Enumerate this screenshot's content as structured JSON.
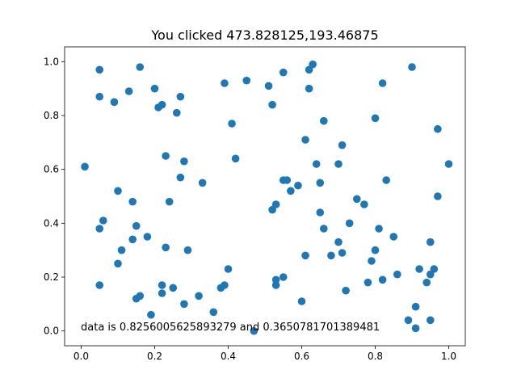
{
  "chart_data": {
    "type": "scatter",
    "title": "You clicked 473.828125,193.46875",
    "xlabel": "",
    "ylabel": "",
    "xlim": [
      -0.045,
      1.045
    ],
    "ylim": [
      -0.055,
      1.055
    ],
    "xticks": [
      0.0,
      0.2,
      0.4,
      0.6,
      0.8,
      1.0
    ],
    "yticks": [
      0.0,
      0.2,
      0.4,
      0.6,
      0.8,
      1.0
    ],
    "xtick_labels": [
      "0.0",
      "0.2",
      "0.4",
      "0.6",
      "0.8",
      "1.0"
    ],
    "ytick_labels": [
      "0.0",
      "0.2",
      "0.4",
      "0.6",
      "0.8",
      "1.0"
    ],
    "grid": false,
    "annotation": "data is 0.8256005625893279 and 0.3650781701389481",
    "marker_color": "#1f77b4",
    "points": [
      [
        0.01,
        0.61
      ],
      [
        0.05,
        0.97
      ],
      [
        0.05,
        0.87
      ],
      [
        0.05,
        0.38
      ],
      [
        0.06,
        0.41
      ],
      [
        0.05,
        0.17
      ],
      [
        0.09,
        0.85
      ],
      [
        0.1,
        0.52
      ],
      [
        0.1,
        0.25
      ],
      [
        0.11,
        0.3
      ],
      [
        0.13,
        0.89
      ],
      [
        0.14,
        0.34
      ],
      [
        0.14,
        0.48
      ],
      [
        0.15,
        0.39
      ],
      [
        0.15,
        0.12
      ],
      [
        0.16,
        0.13
      ],
      [
        0.16,
        0.98
      ],
      [
        0.18,
        0.35
      ],
      [
        0.19,
        0.06
      ],
      [
        0.2,
        0.9
      ],
      [
        0.21,
        0.83
      ],
      [
        0.22,
        0.84
      ],
      [
        0.22,
        0.17
      ],
      [
        0.22,
        0.14
      ],
      [
        0.23,
        0.65
      ],
      [
        0.23,
        0.31
      ],
      [
        0.24,
        0.48
      ],
      [
        0.25,
        0.16
      ],
      [
        0.26,
        0.81
      ],
      [
        0.27,
        0.87
      ],
      [
        0.27,
        0.57
      ],
      [
        0.28,
        0.63
      ],
      [
        0.28,
        0.1
      ],
      [
        0.29,
        0.3
      ],
      [
        0.32,
        0.13
      ],
      [
        0.33,
        0.55
      ],
      [
        0.36,
        0.07
      ],
      [
        0.39,
        0.92
      ],
      [
        0.38,
        0.16
      ],
      [
        0.39,
        0.17
      ],
      [
        0.4,
        0.23
      ],
      [
        0.41,
        0.77
      ],
      [
        0.42,
        0.64
      ],
      [
        0.45,
        0.93
      ],
      [
        0.47,
        0.0
      ],
      [
        0.51,
        0.91
      ],
      [
        0.52,
        0.84
      ],
      [
        0.52,
        0.45
      ],
      [
        0.53,
        0.47
      ],
      [
        0.53,
        0.19
      ],
      [
        0.53,
        0.17
      ],
      [
        0.55,
        0.96
      ],
      [
        0.55,
        0.56
      ],
      [
        0.55,
        0.2
      ],
      [
        0.56,
        0.56
      ],
      [
        0.57,
        0.52
      ],
      [
        0.59,
        0.54
      ],
      [
        0.6,
        0.11
      ],
      [
        0.61,
        0.28
      ],
      [
        0.61,
        0.71
      ],
      [
        0.62,
        0.9
      ],
      [
        0.62,
        0.97
      ],
      [
        0.63,
        0.99
      ],
      [
        0.64,
        0.62
      ],
      [
        0.65,
        0.55
      ],
      [
        0.65,
        0.44
      ],
      [
        0.66,
        0.78
      ],
      [
        0.66,
        0.38
      ],
      [
        0.68,
        0.28
      ],
      [
        0.7,
        0.62
      ],
      [
        0.7,
        0.33
      ],
      [
        0.71,
        0.69
      ],
      [
        0.71,
        0.29
      ],
      [
        0.72,
        0.15
      ],
      [
        0.73,
        0.4
      ],
      [
        0.75,
        0.49
      ],
      [
        0.77,
        0.47
      ],
      [
        0.78,
        0.18
      ],
      [
        0.79,
        0.26
      ],
      [
        0.8,
        0.79
      ],
      [
        0.8,
        0.3
      ],
      [
        0.81,
        0.38
      ],
      [
        0.82,
        0.92
      ],
      [
        0.82,
        0.19
      ],
      [
        0.83,
        0.56
      ],
      [
        0.85,
        0.35
      ],
      [
        0.86,
        0.21
      ],
      [
        0.89,
        0.04
      ],
      [
        0.9,
        0.98
      ],
      [
        0.91,
        0.09
      ],
      [
        0.91,
        0.01
      ],
      [
        0.92,
        0.23
      ],
      [
        0.94,
        0.18
      ],
      [
        0.95,
        0.21
      ],
      [
        0.95,
        0.04
      ],
      [
        0.95,
        0.33
      ],
      [
        0.96,
        0.23
      ],
      [
        0.97,
        0.75
      ],
      [
        0.97,
        0.5
      ],
      [
        1.0,
        0.62
      ]
    ]
  }
}
